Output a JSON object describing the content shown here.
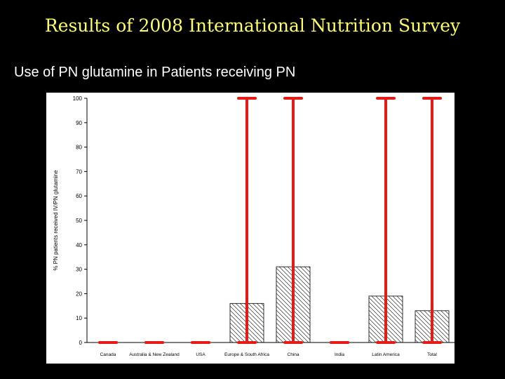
{
  "slide": {
    "title": "Results of 2008 International Nutrition Survey",
    "subtitle": "Use of PN glutamine in Patients receiving PN"
  },
  "colors": {
    "background": "#000000",
    "title": "#ffff66",
    "subtitle": "#ffffff",
    "error_bars": "#e41b17",
    "bar_fill": "#ffffff"
  },
  "chart_data": {
    "type": "bar",
    "categories": [
      "Canada",
      "Australia & New Zealand",
      "USA",
      "Europe & South Africa",
      "China",
      "India",
      "Latin America",
      "Total"
    ],
    "values": [
      0,
      0,
      0,
      16,
      31,
      0,
      19,
      13
    ],
    "error_low": [
      0,
      0,
      0,
      0,
      0,
      0,
      0,
      0
    ],
    "error_high": [
      0,
      0,
      0,
      100,
      100,
      0,
      100,
      100
    ],
    "ylabel": "% PN patients received IV/PN glutamine",
    "ylim": [
      0,
      100
    ],
    "yticks": [
      0,
      10,
      20,
      30,
      40,
      50,
      60,
      70,
      80,
      90,
      100
    ],
    "bar_pattern": "diagonal-hatch",
    "grid": false
  }
}
